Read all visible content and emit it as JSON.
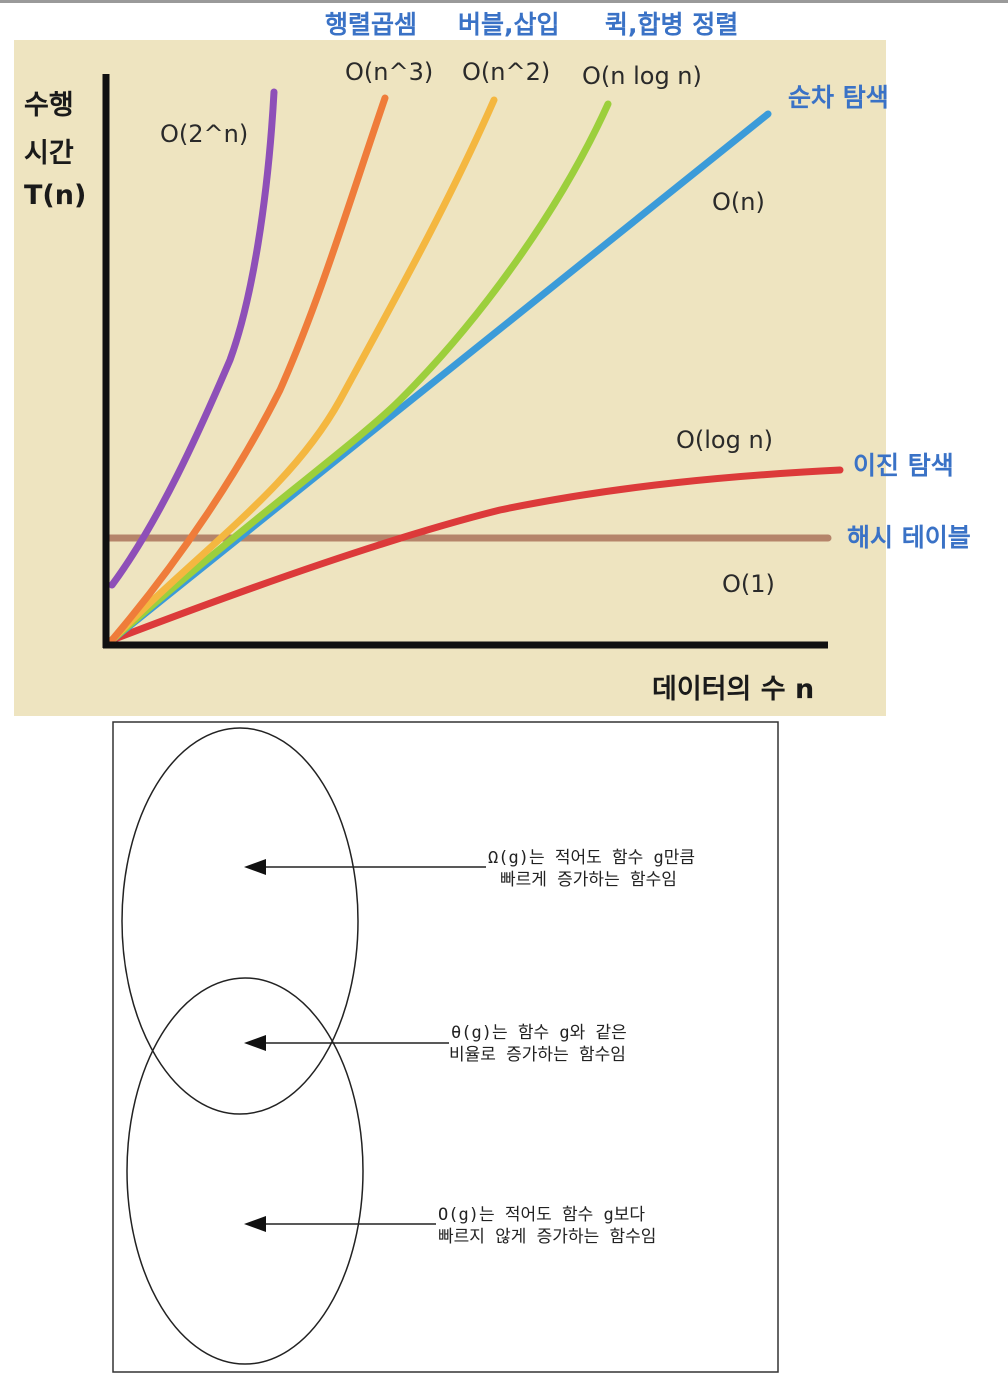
{
  "chart_data": {
    "type": "line",
    "ylabel_lines": [
      "수행",
      "시간",
      "T(n)"
    ],
    "xlabel": "데이터의 수 n",
    "grid": false,
    "legend": "none",
    "series": [
      {
        "name": "O(2^n)",
        "category": "",
        "color": "#8e4fb8"
      },
      {
        "name": "O(n^3)",
        "category": "행렬곱셈",
        "color": "#ef7c3a"
      },
      {
        "name": "O(n^2)",
        "category": "버블,삽입",
        "color": "#f4b740"
      },
      {
        "name": "O(n log n)",
        "category": "퀵,합병 정렬",
        "color": "#9ccf3c"
      },
      {
        "name": "O(n)",
        "category": "순차 탐색",
        "color": "#3b9bd9"
      },
      {
        "name": "O(log n)",
        "category": "이진 탐색",
        "color": "#dc3a3a"
      },
      {
        "name": "O(1)",
        "category": "해시 테이블",
        "color": "#b5846a"
      }
    ],
    "background": "#eee4c0"
  },
  "venn": {
    "omega_text": [
      "Ω(g)는 적어도 함수 g만큼",
      "빠르게 증가하는 함수임"
    ],
    "theta_text": [
      "θ(g)는 함수 g와 같은",
      "비율로 증가하는 함수임"
    ],
    "bigo_text": [
      "O(g)는 적어도 함수 g보다",
      "빠르지 않게 증가하는 함수임"
    ]
  }
}
